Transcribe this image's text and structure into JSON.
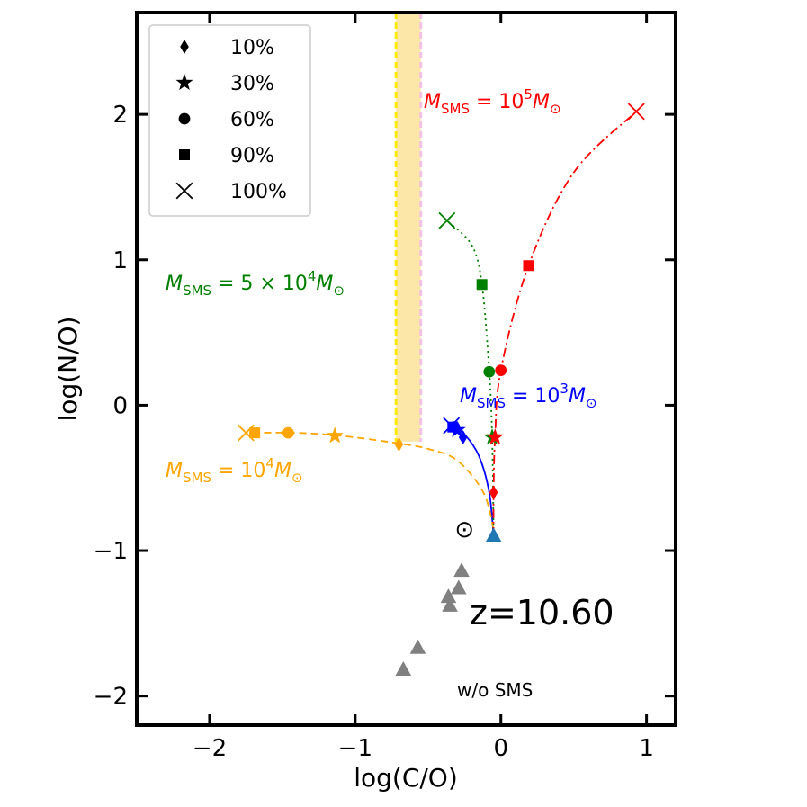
{
  "chart_data": {
    "type": "scatter",
    "xlabel": "log(C/O)",
    "ylabel": "log(N/O)",
    "xlim": [
      -2.5,
      1.2
    ],
    "ylim": [
      -2.2,
      2.7
    ],
    "xticks": [
      -2,
      -1,
      0,
      1
    ],
    "yticks": [
      -2,
      -1,
      0,
      1,
      2
    ],
    "xtick_labels": [
      "−2",
      "−1",
      "0",
      "1"
    ],
    "ytick_labels": [
      "−2",
      "−1",
      "0",
      "1",
      "2"
    ],
    "legend": {
      "placement": "top-left",
      "entries": [
        {
          "marker": "diamond",
          "label": "10%"
        },
        {
          "marker": "star",
          "label": "30%"
        },
        {
          "marker": "circle",
          "label": "60%"
        },
        {
          "marker": "square",
          "label": "90%"
        },
        {
          "marker": "x",
          "label": "100%"
        }
      ]
    },
    "band": {
      "x_range": [
        -0.72,
        -0.55
      ],
      "y_range": [
        -0.25,
        2.7
      ],
      "fill": "#fde7a8",
      "edge": "#ffea00"
    },
    "series": [
      {
        "name": "M_SMS = 10^3 M_sun",
        "color": "#0000ff",
        "linestyle": "solid",
        "curve": [
          [
            -0.05,
            -0.9
          ],
          [
            -0.08,
            -0.6
          ],
          [
            -0.15,
            -0.35
          ],
          [
            -0.25,
            -0.2
          ],
          [
            -0.33,
            -0.15
          ]
        ],
        "points": [
          {
            "pct": "10%",
            "x": -0.26,
            "y": -0.22
          },
          {
            "pct": "30%",
            "x": -0.3,
            "y": -0.17
          },
          {
            "pct": "60%",
            "x": -0.32,
            "y": -0.15
          },
          {
            "pct": "90%",
            "x": -0.33,
            "y": -0.15
          },
          {
            "pct": "100%",
            "x": -0.34,
            "y": -0.14
          }
        ]
      },
      {
        "name": "M_SMS = 10^4 M_sun",
        "color": "#ffa500",
        "linestyle": "dashed",
        "curve": [
          [
            -0.05,
            -0.85
          ],
          [
            -0.12,
            -0.6
          ],
          [
            -0.3,
            -0.38
          ],
          [
            -0.5,
            -0.3
          ],
          [
            -0.72,
            -0.26
          ],
          [
            -1.1,
            -0.21
          ],
          [
            -1.4,
            -0.19
          ],
          [
            -1.75,
            -0.19
          ]
        ],
        "points": [
          {
            "pct": "10%",
            "x": -0.7,
            "y": -0.27
          },
          {
            "pct": "30%",
            "x": -1.14,
            "y": -0.21
          },
          {
            "pct": "60%",
            "x": -1.46,
            "y": -0.19
          },
          {
            "pct": "90%",
            "x": -1.69,
            "y": -0.19
          },
          {
            "pct": "100%",
            "x": -1.75,
            "y": -0.19
          }
        ]
      },
      {
        "name": "M_SMS = 5 x 10^4 M_sun",
        "color": "#008000",
        "linestyle": "dotted",
        "curve": [
          [
            -0.05,
            -0.9
          ],
          [
            -0.06,
            -0.22
          ],
          [
            -0.08,
            0.23
          ],
          [
            -0.13,
            0.83
          ],
          [
            -0.2,
            1.1
          ],
          [
            -0.37,
            1.27
          ]
        ],
        "points": [
          {
            "pct": "30%",
            "x": -0.06,
            "y": -0.22
          },
          {
            "pct": "60%",
            "x": -0.08,
            "y": 0.23
          },
          {
            "pct": "90%",
            "x": -0.13,
            "y": 0.83
          },
          {
            "pct": "100%",
            "x": -0.37,
            "y": 1.27
          }
        ]
      },
      {
        "name": "M_SMS = 10^5 M_sun",
        "color": "#ff0000",
        "linestyle": "dashdot",
        "curve": [
          [
            -0.05,
            -0.9
          ],
          [
            -0.05,
            -0.6
          ],
          [
            -0.04,
            -0.22
          ],
          [
            0.0,
            0.24
          ],
          [
            0.19,
            0.96
          ],
          [
            0.5,
            1.6
          ],
          [
            0.93,
            2.02
          ]
        ],
        "points": [
          {
            "pct": "10%",
            "x": -0.05,
            "y": -0.6
          },
          {
            "pct": "30%",
            "x": -0.04,
            "y": -0.22
          },
          {
            "pct": "60%",
            "x": 0.0,
            "y": 0.24
          },
          {
            "pct": "90%",
            "x": 0.19,
            "y": 0.96
          },
          {
            "pct": "100%",
            "x": 0.93,
            "y": 2.02
          }
        ]
      }
    ],
    "no_sms_points": [
      {
        "x": -0.05,
        "y": -0.9,
        "color": "#1f77b4"
      },
      {
        "x": -0.27,
        "y": -1.14,
        "color": "#808080"
      },
      {
        "x": -0.29,
        "y": -1.26,
        "color": "#808080"
      },
      {
        "x": -0.36,
        "y": -1.32,
        "color": "#808080"
      },
      {
        "x": -0.35,
        "y": -1.38,
        "color": "#808080"
      },
      {
        "x": -0.57,
        "y": -1.67,
        "color": "#808080"
      },
      {
        "x": -0.67,
        "y": -1.82,
        "color": "#808080"
      }
    ],
    "solar": {
      "x": -0.25,
      "y": -0.85,
      "symbol": "⊙"
    },
    "annotations": {
      "m1e5": {
        "prefix": "M",
        "sub": "SMS",
        "mid": " = 10",
        "sup": "5",
        "suffix": "M",
        "sub2": "⊙",
        "color": "#ff0000"
      },
      "m5e4": {
        "prefix": "M",
        "sub": "SMS",
        "mid": " = 5 × 10",
        "sup": "4",
        "suffix": "M",
        "sub2": "⊙",
        "color": "#008000"
      },
      "m1e3": {
        "prefix": "M",
        "sub": "SMS",
        "mid": " = 10",
        "sup": "3",
        "suffix": "M",
        "sub2": "⊙",
        "color": "#0000ff"
      },
      "m1e4": {
        "prefix": "M",
        "sub": "SMS",
        "mid": " = 10",
        "sup": "4",
        "suffix": "M",
        "sub2": "⊙",
        "color": "#ffa500"
      },
      "redshift": "z=10.60",
      "no_sms": "w/o SMS"
    }
  }
}
